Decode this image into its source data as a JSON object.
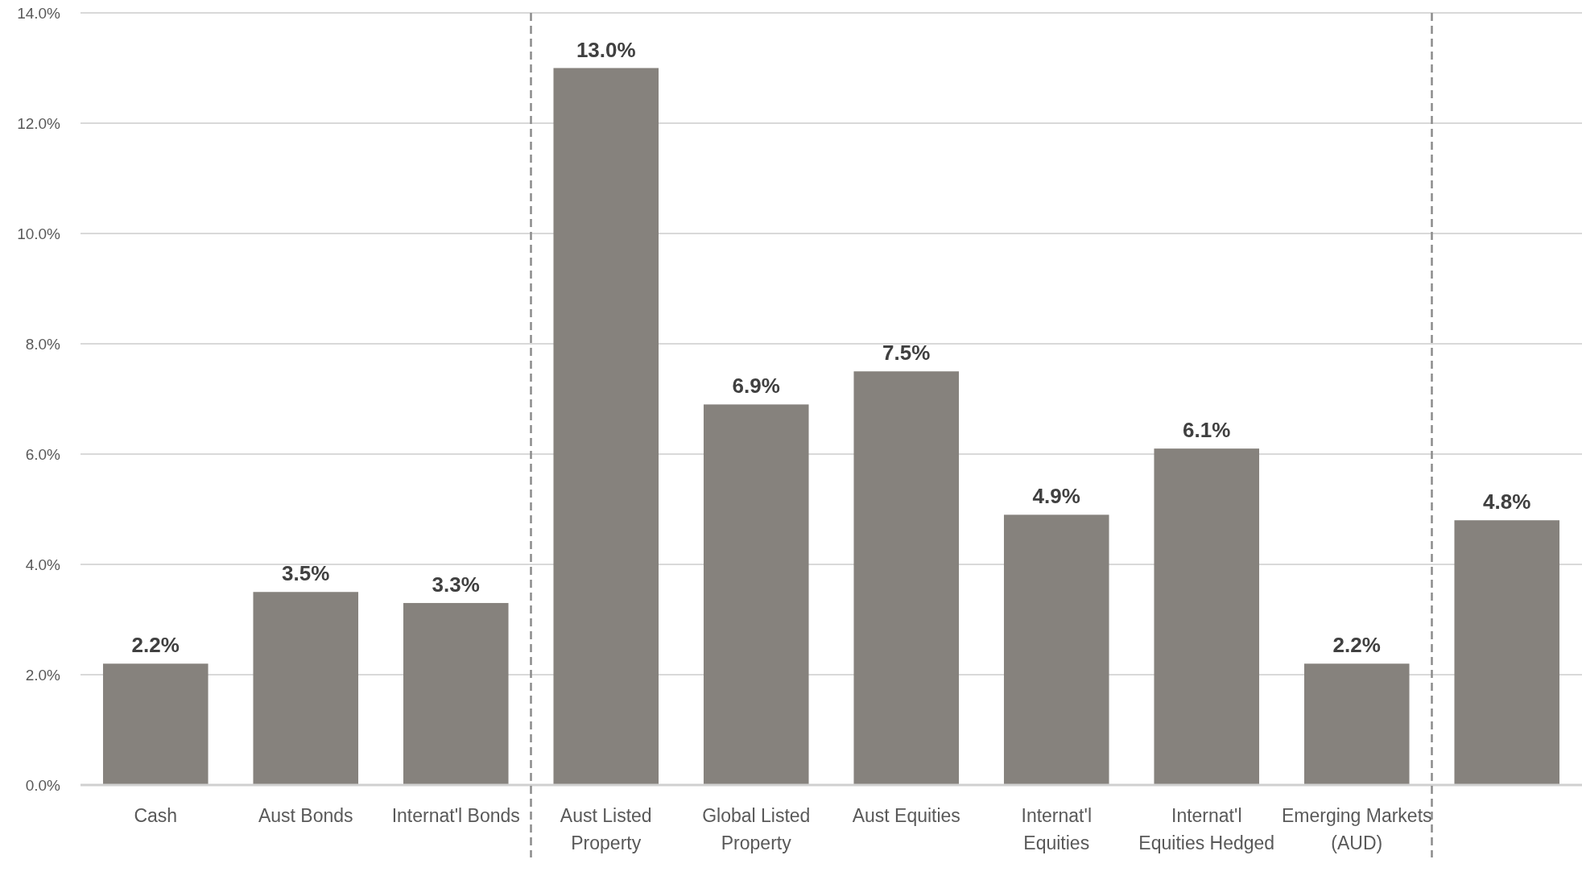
{
  "chart_data": {
    "type": "bar",
    "categories": [
      "Cash",
      "Aust Bonds",
      "Internat'l Bonds",
      "Aust Listed Property",
      "Global Listed Property",
      "Aust Equities",
      "Internat'l Equities",
      "Internat'l Equities Hedged",
      "Emerging Markets (AUD)",
      null
    ],
    "values": [
      2.2,
      3.5,
      3.3,
      13.0,
      6.9,
      7.5,
      4.9,
      6.1,
      2.2,
      4.8
    ],
    "value_labels": [
      "2.2%",
      "3.5%",
      "3.3%",
      "13.0%",
      "6.9%",
      "7.5%",
      "4.9%",
      "6.1%",
      "2.2%",
      "4.8%"
    ],
    "color": "#86827d",
    "ylim": [
      0,
      14
    ],
    "yticks": [
      {
        "value": 0,
        "label": "0.0%"
      },
      {
        "value": 2,
        "label": "2.0%"
      },
      {
        "value": 4,
        "label": "4.0%"
      },
      {
        "value": 6,
        "label": "6.0%"
      },
      {
        "value": 8,
        "label": "8.0%"
      },
      {
        "value": 10,
        "label": "10.0%"
      },
      {
        "value": 12,
        "label": "12.0%"
      },
      {
        "value": 14,
        "label": "14.0%"
      }
    ],
    "grid": "y"
  }
}
